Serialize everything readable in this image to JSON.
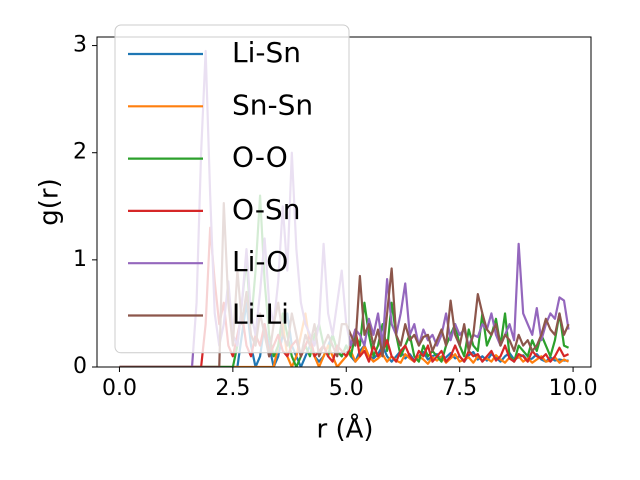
{
  "chart_data": {
    "type": "line",
    "xlabel": "r (Å)",
    "ylabel": "g(r)",
    "x": [
      0,
      0.1,
      0.2,
      0.3,
      0.4,
      0.5,
      0.6,
      0.7,
      0.8,
      0.9,
      1,
      1.1,
      1.2,
      1.3,
      1.4,
      1.5,
      1.6,
      1.7,
      1.8,
      1.9,
      2,
      2.1,
      2.2,
      2.3,
      2.4,
      2.5,
      2.6,
      2.7,
      2.8,
      2.9,
      3,
      3.1,
      3.2,
      3.3,
      3.4,
      3.5,
      3.6,
      3.7,
      3.8,
      3.9,
      4,
      4.1,
      4.2,
      4.3,
      4.4,
      4.5,
      4.6,
      4.7,
      4.8,
      4.9,
      5,
      5.1,
      5.2,
      5.3,
      5.4,
      5.5,
      5.6,
      5.7,
      5.8,
      5.9,
      6,
      6.1,
      6.2,
      6.3,
      6.4,
      6.5,
      6.6,
      6.7,
      6.8,
      6.9,
      7,
      7.1,
      7.2,
      7.3,
      7.4,
      7.5,
      7.6,
      7.7,
      7.8,
      7.9,
      8,
      8.1,
      8.2,
      8.3,
      8.4,
      8.5,
      8.6,
      8.7,
      8.8,
      8.9,
      9,
      9.1,
      9.2,
      9.3,
      9.4,
      9.5,
      9.6,
      9.7,
      9.8,
      9.9
    ],
    "series": [
      {
        "name": "Li-Sn",
        "color": "#1f77b4",
        "values": [
          0,
          0,
          0,
          0,
          0,
          0,
          0,
          0,
          0,
          0,
          0,
          0,
          0,
          0,
          0,
          0,
          0,
          0,
          0,
          0,
          0,
          0,
          0,
          0,
          0,
          0,
          0,
          0.3,
          0.6,
          0.2,
          0,
          0.1,
          0.4,
          0.2,
          0,
          0.1,
          0.3,
          0.5,
          0.2,
          0.1,
          0,
          0.1,
          0.2,
          0.1,
          0.05,
          0.1,
          0.2,
          0.3,
          0.15,
          0.1,
          0.2,
          0.1,
          0.05,
          0.15,
          0.2,
          0.1,
          0.08,
          0.12,
          0.2,
          0.1,
          0.05,
          0.1,
          0.15,
          0.08,
          0.12,
          0.06,
          0.1,
          0.14,
          0.07,
          0.1,
          0.12,
          0.06,
          0.09,
          0.13,
          0.08,
          0.1,
          0.05,
          0.11,
          0.14,
          0.07,
          0.1,
          0.06,
          0.12,
          0.09,
          0.05,
          0.1,
          0.13,
          0.07,
          0.09,
          0.11,
          0.06,
          0.08,
          0.12,
          0.07,
          0.05,
          0.09,
          0.06,
          0.07,
          0.06,
          0.06
        ]
      },
      {
        "name": "Sn-Sn",
        "color": "#ff7f0e",
        "values": [
          0,
          0,
          0,
          0,
          0,
          0,
          0,
          0,
          0,
          0,
          0,
          0,
          0,
          0,
          0,
          0,
          0,
          0,
          0,
          0,
          0,
          0,
          0,
          0,
          0,
          0,
          0,
          0,
          0,
          0,
          0,
          0,
          0,
          0,
          0,
          0.2,
          0.4,
          0.1,
          0,
          0.1,
          0.3,
          0.5,
          0.2,
          0.1,
          0,
          0.1,
          0.2,
          0.1,
          0,
          0.05,
          0.1,
          0.15,
          0.05,
          0.1,
          0.2,
          0.1,
          0.05,
          0.08,
          0.12,
          0.05,
          0.1,
          0.06,
          0.04,
          0.12,
          0.08,
          0.05,
          0.1,
          0.07,
          0.03,
          0.09,
          0.06,
          0.1,
          0.04,
          0.08,
          0.12,
          0.05,
          0.07,
          0.09,
          0.04,
          0.1,
          0.06,
          0.08,
          0.05,
          0.11,
          0.07,
          0.04,
          0.09,
          0.06,
          0.1,
          0.05,
          0.08,
          0.04,
          0.07,
          0.1,
          0.05,
          0.06,
          0.09,
          0.04,
          0.07,
          0.05
        ]
      },
      {
        "name": "O-O",
        "color": "#2ca02c",
        "values": [
          0,
          0,
          0,
          0,
          0,
          0,
          0,
          0,
          0,
          0,
          0,
          0,
          0,
          0,
          0,
          0,
          0,
          0,
          0,
          0,
          0,
          0,
          0,
          0,
          0,
          0,
          0.2,
          0.6,
          1.0,
          0.4,
          0.9,
          1.6,
          0.8,
          0.3,
          0.1,
          0.2,
          0.5,
          0.3,
          0.1,
          0,
          0.1,
          0.2,
          0.1,
          0.3,
          0.4,
          0.2,
          0.1,
          0.3,
          0.15,
          0.1,
          0.2,
          0.1,
          0.3,
          0.2,
          0.6,
          0.3,
          0.1,
          0.2,
          0.4,
          0.15,
          0.6,
          0.3,
          0.1,
          0.2,
          0.3,
          0.1,
          0.05,
          0.2,
          0.1,
          0.15,
          0.1,
          0.05,
          0.2,
          0.3,
          0.4,
          0.2,
          0.1,
          0.35,
          0.2,
          0.15,
          0.5,
          0.2,
          0.3,
          0.45,
          0.2,
          0.5,
          0.1,
          0.05,
          0.2,
          0.15,
          0.1,
          0.25,
          0.15,
          0.3,
          0.2,
          0.1,
          0.25,
          0.5,
          0.2,
          0.18
        ]
      },
      {
        "name": "O-Sn",
        "color": "#d62728",
        "values": [
          0,
          0,
          0,
          0,
          0,
          0,
          0,
          0,
          0,
          0,
          0,
          0,
          0,
          0,
          0,
          0,
          0,
          0,
          0,
          0.4,
          1.3,
          0.8,
          0.4,
          0.6,
          0.2,
          0.1,
          0.3,
          0.5,
          0.2,
          0.1,
          0.3,
          0.2,
          0.4,
          0.1,
          0.2,
          0.3,
          0.15,
          0.1,
          0.2,
          0.25,
          0.1,
          0.2,
          0.3,
          0.1,
          0.15,
          0.2,
          0.1,
          0.05,
          0.2,
          0.15,
          0.1,
          0.2,
          0.35,
          0.1,
          0.15,
          0.05,
          0.2,
          0.1,
          0.15,
          0.25,
          0.1,
          0.05,
          0.15,
          0.2,
          0.1,
          0.05,
          0.15,
          0.1,
          0.2,
          0.05,
          0.1,
          0.15,
          0.05,
          0.1,
          0.2,
          0.1,
          0.05,
          0.15,
          0.1,
          0.12,
          0.05,
          0.1,
          0.15,
          0.06,
          0.1,
          0.2,
          0.08,
          0.05,
          0.12,
          0.1,
          0.05,
          0.15,
          0.1,
          0.08,
          0.12,
          0.05,
          0.1,
          0.18,
          0.1,
          0.12
        ]
      },
      {
        "name": "Li-O",
        "color": "#9467bd",
        "values": [
          0,
          0,
          0,
          0,
          0,
          0,
          0,
          0,
          0,
          0,
          0,
          0,
          0,
          0,
          0,
          0,
          0,
          0.6,
          2.0,
          2.95,
          1.6,
          0.5,
          0.2,
          0.4,
          0.8,
          0.3,
          0.2,
          0.6,
          1.1,
          0.5,
          0.3,
          0.7,
          1.2,
          0.6,
          0.4,
          0.8,
          1.5,
          0.9,
          2.0,
          1.1,
          0.6,
          0.4,
          0.3,
          0.2,
          0.4,
          1.15,
          0.5,
          0.3,
          0.6,
          0.9,
          0.4,
          0.2,
          0.35,
          0.3,
          0.2,
          0.45,
          0.3,
          0.5,
          0.2,
          0.82,
          0.4,
          0.3,
          0.5,
          0.78,
          0.3,
          0.4,
          0.2,
          0.35,
          0.25,
          0.3,
          0.2,
          0.3,
          0.5,
          0.25,
          0.4,
          0.3,
          0.35,
          0.2,
          0.3,
          0.28,
          0.4,
          0.35,
          0.5,
          0.3,
          0.2,
          0.3,
          0.4,
          0.25,
          1.15,
          0.5,
          0.4,
          0.3,
          0.55,
          0.25,
          0.4,
          0.5,
          0.45,
          0.65,
          0.62,
          0.35
        ]
      },
      {
        "name": "Li-Li",
        "color": "#8c564b",
        "values": [
          0,
          0,
          0,
          0,
          0,
          0,
          0,
          0,
          0,
          0,
          0,
          0,
          0,
          0,
          0,
          0,
          0,
          0,
          0,
          0,
          0,
          0,
          0,
          1.53,
          0.6,
          0.2,
          0.9,
          0.4,
          0.7,
          0.3,
          0.2,
          0.5,
          0.3,
          0.1,
          0.4,
          0.6,
          0.3,
          0.2,
          0.5,
          0.3,
          0.1,
          0.3,
          0.2,
          0.4,
          0.1,
          0.2,
          0.3,
          0.2,
          0.1,
          0.4,
          0.4,
          0.3,
          0.2,
          0.85,
          0.3,
          0.4,
          0.2,
          0.35,
          0.1,
          0.5,
          0.92,
          0.3,
          0.2,
          0.4,
          0.25,
          0.3,
          0.2,
          0.28,
          0.3,
          0.15,
          0.25,
          0.35,
          0.2,
          0.62,
          0.3,
          0.2,
          0.4,
          0.15,
          0.3,
          0.68,
          0.5,
          0.35,
          0.3,
          0.4,
          0.2,
          0.3,
          0.25,
          0.15,
          0.3,
          0.2,
          0.25,
          0.15,
          0.2,
          0.3,
          0.45,
          0.35,
          0.3,
          0.5,
          0.3,
          0.4
        ]
      }
    ],
    "xlim": [
      -0.495,
      10.395
    ],
    "ylim": [
      0,
      3.08
    ],
    "xticks": [
      {
        "value": 0,
        "label": "0.0"
      },
      {
        "value": 2.5,
        "label": "2.5"
      },
      {
        "value": 5,
        "label": "5.0"
      },
      {
        "value": 7.5,
        "label": "7.5"
      },
      {
        "value": 10,
        "label": "10.0"
      }
    ],
    "yticks": [
      0,
      1,
      2,
      3
    ],
    "grid": false,
    "legend": "upper left"
  }
}
